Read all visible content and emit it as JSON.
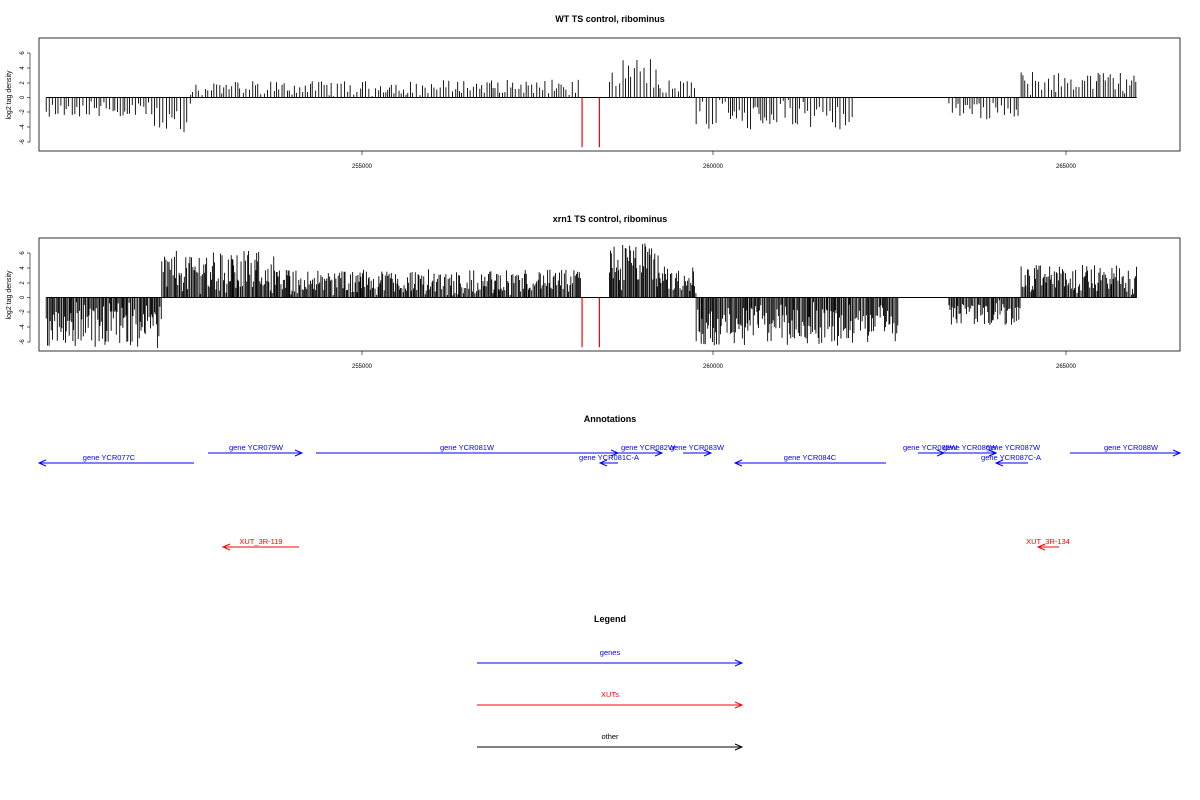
{
  "chart_data": [
    {
      "type": "bar",
      "title": "WT TS control, ribominus",
      "ylabel": "log2 tag density",
      "xlabel": "",
      "xlim": [
        250900,
        266700
      ],
      "ylim": [
        -7,
        8
      ],
      "x_ticks": [
        "255000",
        "260000",
        "265000"
      ],
      "y_ticks": [
        "6",
        "4",
        "2",
        "0",
        "-2",
        "-4",
        "-6"
      ],
      "marker_lines_x": [
        258420,
        258660
      ],
      "series": [
        {
          "values": [
            {
              "x": [
                251000,
                252500
              ],
              "y": [
                -2.6,
                -2.9
              ],
              "note_sign": "neg"
            },
            {
              "x": [
                252500,
                253000
              ],
              "y": [
                -5.5
              ]
            },
            {
              "x": [
                253000,
                256500
              ],
              "y": [
                2.2
              ]
            },
            {
              "x": [
                256500,
                258400
              ],
              "y": [
                2.4
              ]
            },
            {
              "x": [
                258800,
                259500
              ],
              "y": [
                5.5
              ]
            },
            {
              "x": [
                259500,
                260000
              ],
              "y": [
                2.4
              ]
            },
            {
              "x": [
                260000,
                262200
              ],
              "y": [
                -4.5
              ]
            },
            {
              "x": [
                263500,
                264500
              ],
              "y": [
                -3.0
              ]
            },
            {
              "x": [
                264500,
                266100
              ],
              "y": [
                3.5
              ]
            }
          ]
        }
      ]
    },
    {
      "type": "bar",
      "title": "xrn1 TS control, ribominus",
      "ylabel": "log2 tag density",
      "xlabel": "",
      "xlim": [
        250900,
        266700
      ],
      "ylim": [
        -7,
        8
      ],
      "x_ticks": [
        "255000",
        "260000",
        "265000"
      ],
      "y_ticks": [
        "6",
        "4",
        "2",
        "0",
        "-2",
        "-4",
        "-6"
      ],
      "marker_lines_x": [
        258420,
        258660
      ],
      "series": [
        {
          "values": [
            {
              "x": [
                251000,
                252600
              ],
              "y": [
                -6.8
              ]
            },
            {
              "x": [
                252600,
                254200
              ],
              "y": [
                6.3
              ]
            },
            {
              "x": [
                254200,
                258400
              ],
              "y": [
                3.8
              ]
            },
            {
              "x": [
                258800,
                259500
              ],
              "y": [
                7.4
              ]
            },
            {
              "x": [
                259500,
                260000
              ],
              "y": [
                4.3
              ]
            },
            {
              "x": [
                260000,
                262800
              ],
              "y": [
                -6.5
              ]
            },
            {
              "x": [
                263500,
                264500
              ],
              "y": [
                -3.8
              ]
            },
            {
              "x": [
                264500,
                266100
              ],
              "y": [
                4.4
              ]
            }
          ]
        }
      ]
    }
  ],
  "annotations": {
    "title": "Annotations",
    "genes": [
      {
        "label": "gene YCR077C",
        "x1": 251000,
        "x2": 253300,
        "dir": "left"
      },
      {
        "label": "gene YCR079W",
        "x1": 253300,
        "x2": 254400,
        "dir": "right"
      },
      {
        "label": "gene YCR081W",
        "x1": 254400,
        "x2": 258400,
        "dir": "right"
      },
      {
        "label": "gene YCR081C-A",
        "x1": 258400,
        "x2": 258660,
        "dir": "left"
      },
      {
        "label": "gene YCR082W",
        "x1": 258660,
        "x2": 259350,
        "dir": "right"
      },
      {
        "label": "gene YCR083W",
        "x1": 259500,
        "x2": 260000,
        "dir": "right"
      },
      {
        "label": "gene YCR084C",
        "x1": 260300,
        "x2": 262500,
        "dir": "left"
      },
      {
        "label": "gene YCR085W",
        "x1": 262950,
        "x2": 263500,
        "dir": "right"
      },
      {
        "label": "gene YCR086W",
        "x1": 263500,
        "x2": 263900,
        "dir": "right"
      },
      {
        "label": "gene YCR087W",
        "x1": 263900,
        "x2": 264100,
        "dir": "right"
      },
      {
        "label": "gene YCR087C-A",
        "x1": 264000,
        "x2": 264500,
        "dir": "left"
      },
      {
        "label": "gene YCR088W",
        "x1": 264800,
        "x2": 266700,
        "dir": "right"
      }
    ],
    "xuts": [
      {
        "label": "XUT_3R-119",
        "x1": 253400,
        "x2": 254500,
        "dir": "left"
      },
      {
        "label": "XUT_3R-134",
        "x1": 264800,
        "x2": 265100,
        "dir": "left"
      }
    ]
  },
  "legend": {
    "title": "Legend",
    "items": [
      {
        "label": "genes",
        "color": "#0000ff"
      },
      {
        "label": "XUTs",
        "color": "#ff0000"
      },
      {
        "label": "other",
        "color": "#000000"
      }
    ]
  },
  "colors": {
    "gene": "#0000ff",
    "xut": "#ff0000",
    "bars": "#000000",
    "marker": "#ff0000"
  }
}
